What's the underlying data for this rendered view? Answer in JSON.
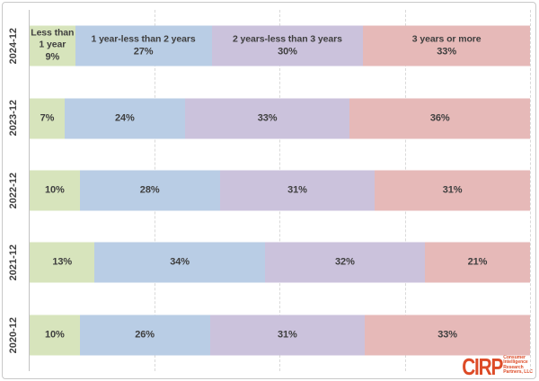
{
  "chart_data": {
    "type": "bar",
    "variant": "horizontal_stacked_100_percent",
    "title": "",
    "xlabel": "",
    "ylabel": "",
    "xlim": [
      0,
      100
    ],
    "grid": "dashed-vertical",
    "gridlines_percent": [
      25,
      50,
      75,
      100
    ],
    "legend": "none",
    "value_suffix": "%",
    "first_row_shows_series_names": true,
    "label_color": "#3f3f3f",
    "categories": [
      "2024-12",
      "2023-12",
      "2022-12",
      "2021-12",
      "2020-12"
    ],
    "series": [
      {
        "name": "Less than 1 year",
        "name_lines": [
          "Less than",
          "1 year"
        ],
        "color": "#D7E4BC",
        "values": [
          9,
          7,
          10,
          13,
          10
        ]
      },
      {
        "name": "1 year-less than 2 years",
        "name_lines": [
          "1 year-less than 2 years"
        ],
        "color": "#B9CDE5",
        "values": [
          27,
          24,
          28,
          34,
          26
        ]
      },
      {
        "name": "2 years-less than 3 years",
        "name_lines": [
          "2 years-less than 3 years"
        ],
        "color": "#CBC2DC",
        "values": [
          30,
          33,
          31,
          32,
          31
        ]
      },
      {
        "name": "3 years or more",
        "name_lines": [
          "3 years or more"
        ],
        "color": "#E6B9B8",
        "values": [
          33,
          36,
          31,
          21,
          33
        ]
      }
    ]
  },
  "logo": {
    "brand": "CIRP",
    "brand_color": "#DD4B27",
    "tagline_lines": [
      "Consumer",
      "Intelligence",
      "Research",
      "Partners, LLC"
    ]
  }
}
